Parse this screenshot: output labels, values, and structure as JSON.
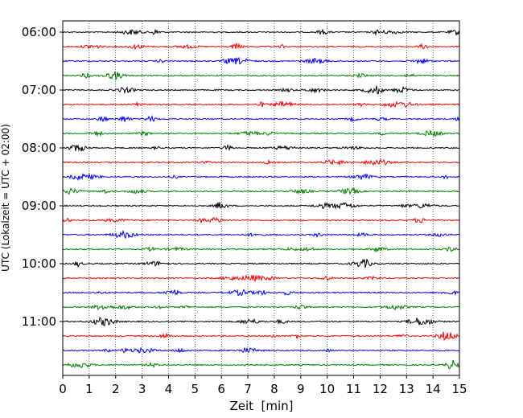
{
  "chart_data": {
    "type": "line",
    "title": "",
    "xlabel": "Zeit  [min]",
    "ylabel": "UTC (Lokalzeit = UTC + 02:00)",
    "xlim": [
      0,
      15
    ],
    "x_ticks": [
      "0",
      "1",
      "2",
      "3",
      "4",
      "5",
      "6",
      "7",
      "8",
      "9",
      "10",
      "11",
      "12",
      "13",
      "14",
      "15"
    ],
    "y_ticks": [
      "06:00",
      "07:00",
      "08:00",
      "09:00",
      "10:00",
      "11:00"
    ],
    "grid": "vertical-dotted",
    "trace_interval_min": 15,
    "trace_colors": [
      "#000000",
      "#ff0000",
      "#0000ff",
      "#008000"
    ],
    "series": [
      {
        "start": "06:00"
      },
      {
        "start": "06:15"
      },
      {
        "start": "06:30"
      },
      {
        "start": "06:45"
      },
      {
        "start": "07:00"
      },
      {
        "start": "07:15"
      },
      {
        "start": "07:30"
      },
      {
        "start": "07:45"
      },
      {
        "start": "08:00"
      },
      {
        "start": "08:15"
      },
      {
        "start": "08:30"
      },
      {
        "start": "08:45"
      },
      {
        "start": "09:00"
      },
      {
        "start": "09:15"
      },
      {
        "start": "09:30"
      },
      {
        "start": "09:45"
      },
      {
        "start": "10:00"
      },
      {
        "start": "10:15"
      },
      {
        "start": "10:30"
      },
      {
        "start": "10:45"
      },
      {
        "start": "11:00"
      },
      {
        "start": "11:15"
      },
      {
        "start": "11:30"
      },
      {
        "start": "11:45"
      }
    ]
  }
}
